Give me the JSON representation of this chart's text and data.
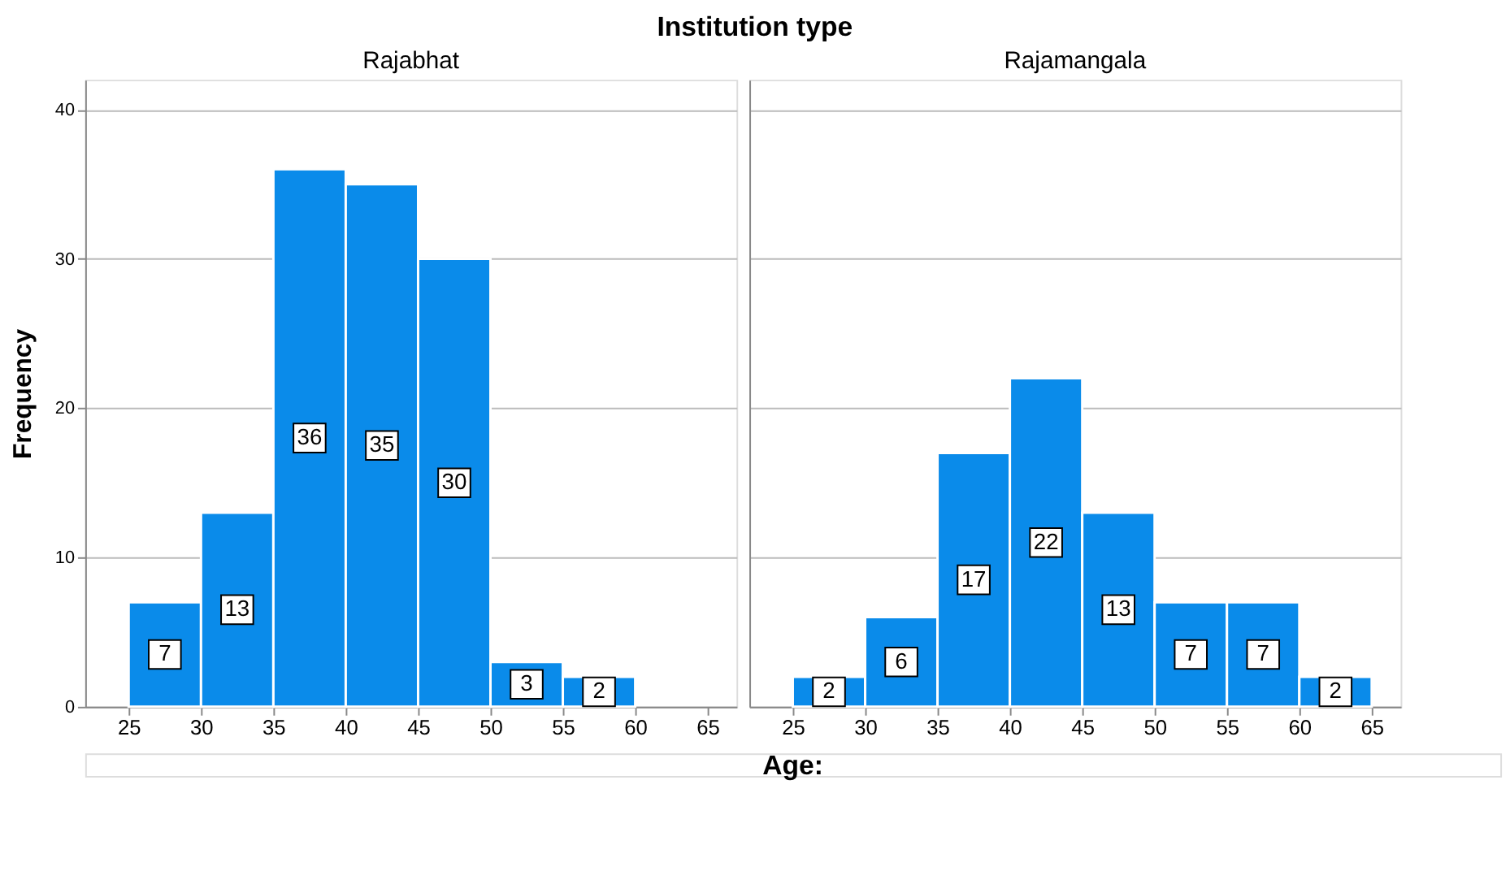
{
  "chart_data": [
    {
      "type": "histogram",
      "title": "Rajabhat",
      "annotations": [
        "Institution type"
      ],
      "xlabel": "Age:",
      "ylabel": "Frequency",
      "bins": [
        25,
        30,
        35,
        40,
        45,
        50,
        55,
        60,
        65
      ],
      "values": [
        7,
        13,
        36,
        35,
        30,
        3,
        2,
        0
      ],
      "value_labels": [
        "7",
        "13",
        "36",
        "35",
        "30",
        "3",
        "2",
        null
      ],
      "color": "#0a8bea",
      "xlim": [
        22,
        67
      ],
      "xticks": [
        25,
        30,
        35,
        40,
        45,
        50,
        55,
        60,
        65
      ],
      "ylim": [
        0,
        42
      ],
      "yticks": [
        0,
        10,
        20,
        30,
        40
      ],
      "grid": "y"
    },
    {
      "type": "histogram",
      "title": "Rajamangala",
      "bins": [
        25,
        30,
        35,
        40,
        45,
        50,
        55,
        60,
        65
      ],
      "values": [
        2,
        6,
        17,
        22,
        13,
        7,
        7,
        2
      ],
      "data_labels": true,
      "color": "#0a8bea",
      "xlim": [
        22,
        67
      ],
      "xticks": [
        25,
        30,
        35,
        40,
        45,
        50,
        55,
        60,
        65
      ],
      "ylim": [
        0,
        42
      ],
      "yticks": [
        0,
        10,
        20,
        30,
        40
      ],
      "grid": "y",
      "tick_labels": "x"
    }
  ]
}
